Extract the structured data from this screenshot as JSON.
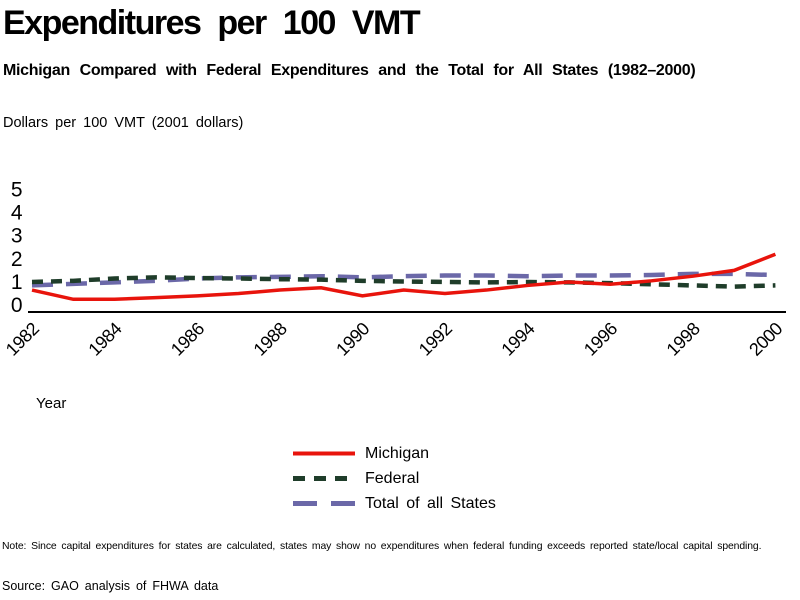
{
  "page": {
    "title": "Expenditures per 100 VMT",
    "subtitle": "Michigan Compared with Federal Expenditures and the Total for All States (1982–2000)",
    "units_label": "Dollars per 100 VMT (2001 dollars)",
    "xaxis_label": "Year",
    "note": "Note: Since capital expenditures for states are calculated, states may show no expenditures when federal funding exceeds reported state/local capital spending.",
    "source": "Source: GAO analysis of FHWA data"
  },
  "chart_data": {
    "type": "line",
    "title": "Expenditures per 100 VMT",
    "subtitle": "Michigan Compared with Federal Expenditures and the Total for All States (1982–2000)",
    "ylabel": "Dollars per 100 VMT (2001 dollars)",
    "xlabel": "Year",
    "ylim": [
      0,
      5
    ],
    "y_ticks": [
      0,
      1,
      2,
      3,
      4,
      5
    ],
    "x_ticks": [
      1982,
      1984,
      1986,
      1988,
      1990,
      1992,
      1994,
      1996,
      1998,
      2000
    ],
    "grid": false,
    "legend_position": "bottom-center",
    "x": [
      1982,
      1983,
      1984,
      1985,
      1986,
      1987,
      1988,
      1989,
      1990,
      1991,
      1992,
      1993,
      1994,
      1995,
      1996,
      1997,
      1998,
      1999,
      2000
    ],
    "series": [
      {
        "name": "Michigan",
        "color": "#e8140c",
        "dash": "",
        "legend_dash": "",
        "width": 3.5,
        "values": [
          0.95,
          0.55,
          0.55,
          0.62,
          0.7,
          0.8,
          0.95,
          1.05,
          0.7,
          0.95,
          0.8,
          0.95,
          1.15,
          1.3,
          1.2,
          1.35,
          1.55,
          1.8,
          2.5
        ]
      },
      {
        "name": "Federal",
        "color": "#1f3d2a",
        "dash": "11 8",
        "legend_dash": "12 9",
        "width": 4.5,
        "values": [
          1.3,
          1.35,
          1.45,
          1.5,
          1.47,
          1.45,
          1.42,
          1.4,
          1.35,
          1.32,
          1.3,
          1.28,
          1.3,
          1.28,
          1.25,
          1.2,
          1.15,
          1.1,
          1.15
        ]
      },
      {
        "name": "Total of all States",
        "color": "#6b68a8",
        "dash": "21 13",
        "legend_dash": "24 14",
        "width": 4.5,
        "values": [
          1.15,
          1.22,
          1.28,
          1.35,
          1.45,
          1.5,
          1.52,
          1.55,
          1.5,
          1.55,
          1.58,
          1.58,
          1.55,
          1.58,
          1.58,
          1.6,
          1.65,
          1.65,
          1.6
        ]
      }
    ]
  }
}
